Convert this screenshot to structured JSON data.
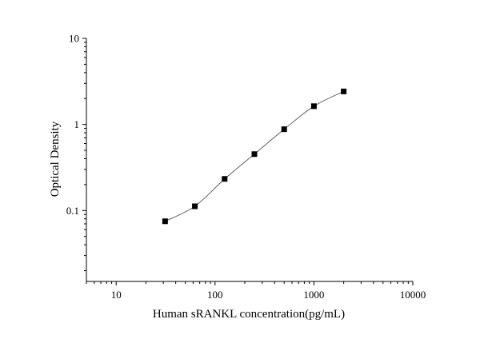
{
  "chart_data": {
    "type": "scatter",
    "title": "",
    "xlabel": "Human sRANKL concentration(pg/mL)",
    "ylabel": "Optical Density",
    "x_scale": "log",
    "y_scale": "log",
    "xlim": [
      5,
      10000
    ],
    "ylim": [
      0.015,
      10
    ],
    "x_tick_labels": [
      "10",
      "100",
      "1000",
      "10000"
    ],
    "y_tick_labels": [
      "0.1",
      "1",
      "10"
    ],
    "grid": false,
    "legend": "none",
    "connected_line": true,
    "marker": "square",
    "marker_color": "#000000",
    "line_color": "#555555",
    "series": [
      {
        "x": [
          31.25,
          62.5,
          125,
          250,
          500,
          1000,
          2000
        ],
        "y": [
          0.075,
          0.112,
          0.233,
          0.452,
          0.88,
          1.63,
          2.42
        ]
      }
    ]
  }
}
